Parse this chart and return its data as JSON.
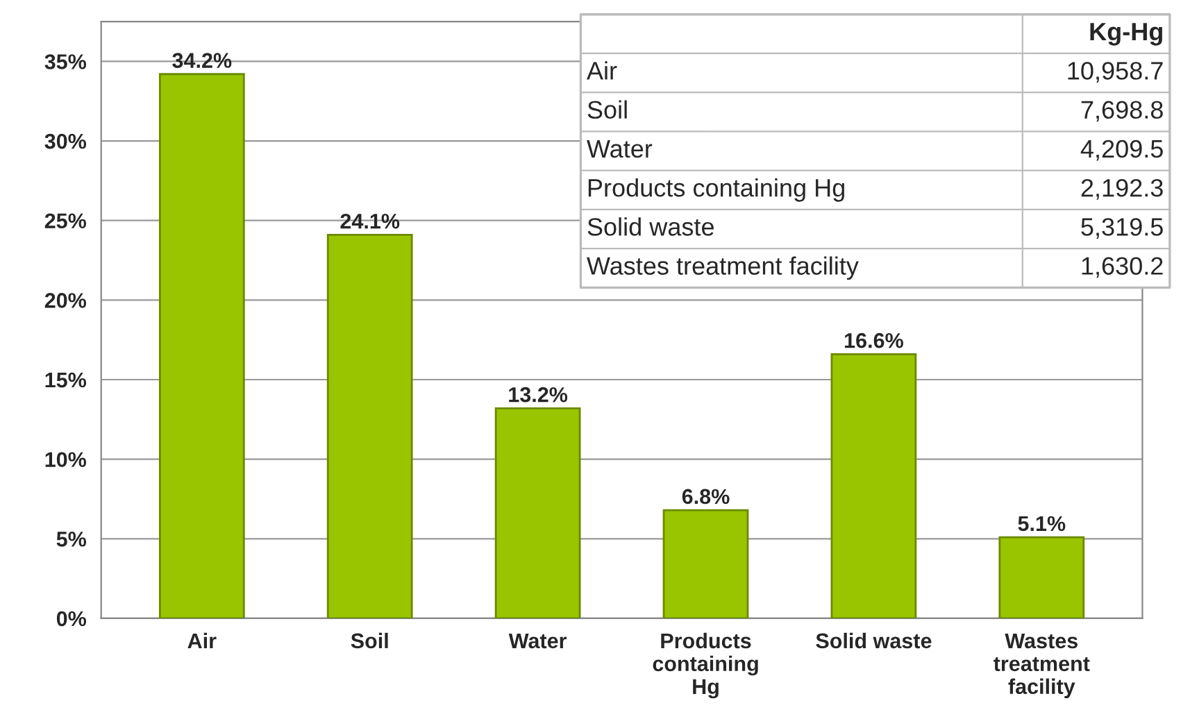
{
  "chart_data": [
    {
      "type": "bar",
      "categories": [
        "Air",
        "Soil",
        "Water",
        "Products\ncontaining\nHg",
        "Solid waste",
        "Wastes\ntreatment\nfacility"
      ],
      "values": [
        34.2,
        24.1,
        13.2,
        6.8,
        16.6,
        5.1
      ],
      "color": "#99c400",
      "value_labels": [
        "34.2%",
        "24.1%",
        "13.2%",
        "6.8%",
        "16.6%",
        "5.1%"
      ],
      "ylim": [
        0,
        37.5
      ],
      "yticks": [
        {
          "value": 0,
          "label": "0%"
        },
        {
          "value": 5,
          "label": "5%"
        },
        {
          "value": 10,
          "label": "10%"
        },
        {
          "value": 15,
          "label": "15%"
        },
        {
          "value": 20,
          "label": "20%"
        },
        {
          "value": 25,
          "label": "25%"
        },
        {
          "value": 30,
          "label": "30%"
        },
        {
          "value": 35,
          "label": "35%"
        }
      ],
      "grid": "y"
    },
    {
      "type": "other",
      "title": "Kg-Hg",
      "categories": [
        "Air",
        "Soil",
        "Water",
        "Products containing Hg",
        "Solid waste",
        "Wastes treatment facility"
      ],
      "value_labels": [
        "10,958.7",
        "7,698.8",
        "4,209.5",
        "2,192.3",
        "5,319.5",
        "1,630.2"
      ]
    }
  ]
}
